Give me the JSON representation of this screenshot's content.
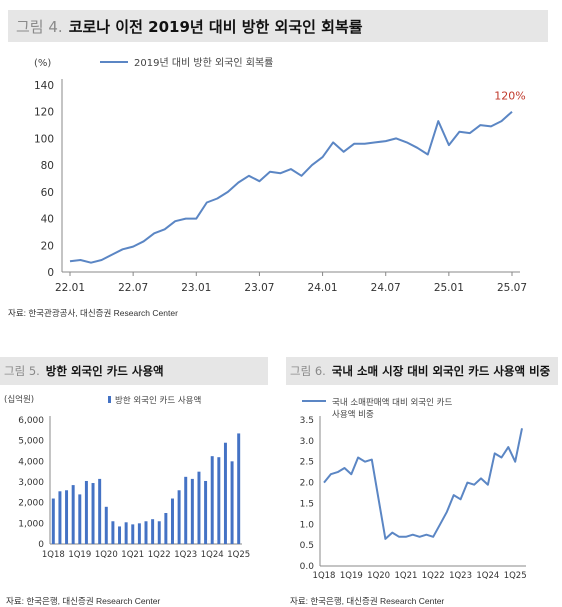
{
  "fig4": {
    "num": "그림 4.",
    "title": "코로나 이전 2019년 대비 방한 외국인 회복률",
    "source": "자료: 한국관광공사, 대신증권 Research Center"
  },
  "fig5": {
    "num": "그림 5.",
    "title": "방한 외국인 카드 사용액",
    "source": "자료: 한국은행, 대신증권 Research Center"
  },
  "fig6": {
    "num": "그림 6.",
    "title": "국내 소매 시장 대비 외국인 카드 사용액 비중",
    "source": "자료: 한국은행, 대신증권 Research Center"
  },
  "colors": {
    "line": "#5b86c4",
    "bar": "#4472c4",
    "annotation": "#c0392b",
    "axis": "#888888",
    "header_bg": "#e6e6e6"
  },
  "chart_data": [
    {
      "id": "fig4",
      "type": "line",
      "unit_label": "(%)",
      "legend": "top-left",
      "series": [
        {
          "name": "2019년 대비 방한 외국인 회복률",
          "x": [
            "22.01",
            "22.02",
            "22.03",
            "22.04",
            "22.05",
            "22.06",
            "22.07",
            "22.08",
            "22.09",
            "22.10",
            "22.11",
            "22.12",
            "23.01",
            "23.02",
            "23.03",
            "23.04",
            "23.05",
            "23.06",
            "23.07",
            "23.08",
            "23.09",
            "23.10",
            "23.11",
            "23.12",
            "24.01",
            "24.02",
            "24.03",
            "24.04",
            "24.05",
            "24.06",
            "24.07",
            "24.08",
            "24.09",
            "24.10",
            "24.11",
            "24.12",
            "25.01",
            "25.02",
            "25.03",
            "25.04",
            "25.05",
            "25.06",
            "25.07"
          ],
          "values": [
            8,
            9,
            7,
            9,
            13,
            17,
            19,
            23,
            29,
            32,
            38,
            40,
            40,
            52,
            55,
            60,
            67,
            72,
            68,
            75,
            74,
            77,
            72,
            80,
            86,
            97,
            90,
            96,
            96,
            97,
            98,
            100,
            97,
            93,
            88,
            113,
            95,
            105,
            104,
            110,
            109,
            113,
            120
          ]
        }
      ],
      "x_ticks": [
        "22.01",
        "22.07",
        "23.01",
        "23.07",
        "24.01",
        "24.07",
        "25.01",
        "25.07"
      ],
      "y_ticks": [
        0,
        20,
        40,
        60,
        80,
        100,
        120,
        140
      ],
      "ylim": [
        0,
        140
      ],
      "annotation": "120%"
    },
    {
      "id": "fig5",
      "type": "bar",
      "unit_label": "(십억원)",
      "legend": "top",
      "series": [
        {
          "name": "방한 외국인 카드 사용액",
          "values": [
            2200,
            2550,
            2600,
            2850,
            2400,
            3050,
            2950,
            3150,
            1800,
            1100,
            850,
            1050,
            950,
            1000,
            1100,
            1200,
            1100,
            1500,
            2200,
            2600,
            3250,
            3150,
            3500,
            3050,
            4250,
            4200,
            4900,
            4000,
            5350
          ]
        }
      ],
      "x_ticks": [
        "1Q18",
        "1Q19",
        "1Q20",
        "1Q21",
        "1Q22",
        "1Q23",
        "1Q24",
        "1Q25"
      ],
      "y_ticks": [
        "0",
        "1,000",
        "2,000",
        "3,000",
        "4,000",
        "5,000",
        "6,000"
      ],
      "ylim": [
        0,
        6000
      ]
    },
    {
      "id": "fig6",
      "type": "line",
      "unit_label": "(%)",
      "legend": "top-left",
      "series": [
        {
          "name": "국내 소매판매액 대비 외국인 카드 사용액 비중",
          "legend_lines": [
            "국내 소매판매액 대비 외국인 카드",
            "사용액 비중"
          ],
          "values": [
            2.0,
            2.2,
            2.25,
            2.35,
            2.2,
            2.6,
            2.5,
            2.55,
            1.6,
            0.65,
            0.8,
            0.7,
            0.7,
            0.75,
            0.7,
            0.75,
            0.7,
            1.0,
            1.3,
            1.7,
            1.6,
            2.0,
            1.95,
            2.1,
            1.95,
            2.7,
            2.6,
            2.85,
            2.5,
            3.3
          ]
        }
      ],
      "x_ticks": [
        "1Q18",
        "1Q19",
        "1Q20",
        "1Q21",
        "1Q22",
        "1Q23",
        "1Q24",
        "1Q25"
      ],
      "y_ticks": [
        "0.0",
        "0.5",
        "1.0",
        "1.5",
        "2.0",
        "2.5",
        "3.0",
        "3.5"
      ],
      "ylim": [
        0,
        3.5
      ]
    }
  ]
}
